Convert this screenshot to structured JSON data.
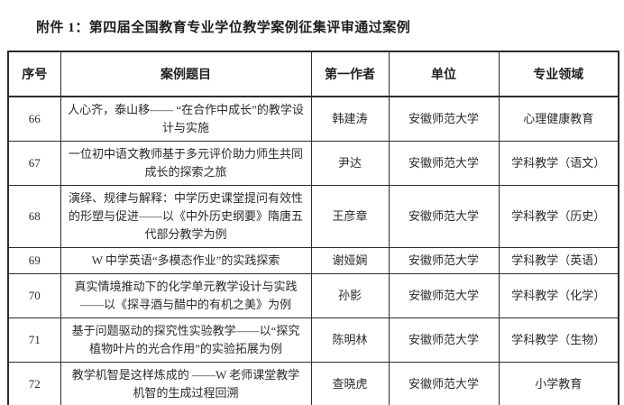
{
  "page": {
    "attachment_title": "附件 1：第四届全国教育专业学位教学案例征集评审通过案例"
  },
  "table": {
    "headers": [
      "序号",
      "案例题目",
      "第一作者",
      "单位",
      "专业领域"
    ],
    "rows": [
      {
        "no": "66",
        "title": "人心齐，泰山移—— “在合作中成长”的教学设计与实施",
        "author": "韩建涛",
        "unit": "安徽师范大学",
        "field": "心理健康教育"
      },
      {
        "no": "67",
        "title": "一位初中语文教师基于多元评价助力师生共同成长的探索之旅",
        "author": "尹达",
        "unit": "安徽师范大学",
        "field": "学科教学（语文）"
      },
      {
        "no": "68",
        "title": "演绎、规律与解释：中学历史课堂提问有效性的形塑与促进——以《中外历史纲要》隋唐五代部分教学为例",
        "author": "王彦章",
        "unit": "安徽师范大学",
        "field": "学科教学（历史）"
      },
      {
        "no": "69",
        "title": "W 中学英语“多模态作业”的实践探索",
        "author": "谢娅娴",
        "unit": "安徽师范大学",
        "field": "学科教学（英语）"
      },
      {
        "no": "70",
        "title": "真实情境推动下的化学单元教学设计与实践——以《探寻酒与醋中的有机之美》为例",
        "author": "孙影",
        "unit": "安徽师范大学",
        "field": "学科教学（化学）"
      },
      {
        "no": "71",
        "title": "基于问题驱动的探究性实验教学——以“探究植物叶片的光合作用”的实验拓展为例",
        "author": "陈明林",
        "unit": "安徽师范大学",
        "field": "学科教学（生物）"
      },
      {
        "no": "72",
        "title": "教学机智是这样炼成的 ——W 老师课堂教学机智的生成过程回溯",
        "author": "查晓虎",
        "unit": "安徽师范大学",
        "field": "小学教育"
      }
    ]
  },
  "colors": {
    "text": "#262626",
    "border": "#2b2b2b",
    "background": "#ffffff"
  }
}
